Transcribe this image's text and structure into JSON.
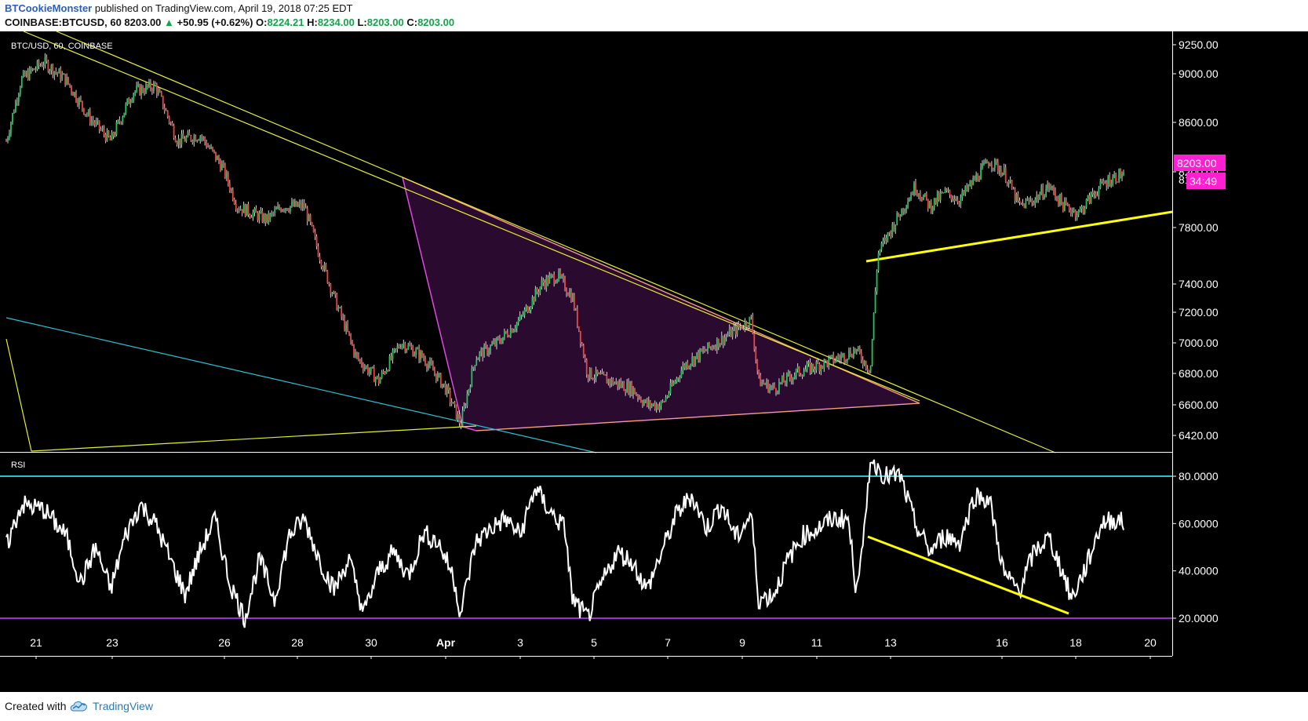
{
  "header": {
    "author": "BTCookieMonster",
    "published_text": "published on TradingView.com, April 19, 2018 07:25 EDT",
    "symbol": "COINBASE:BTCUSD, 60",
    "last": "8203.00",
    "change": "+50.95 (+0.62%)",
    "o_label": "O:",
    "o": "8224.21",
    "h_label": "H:",
    "h": "8234.00",
    "l_label": "L:",
    "l": "8203.00",
    "c_label": "C:",
    "c": "8203.00"
  },
  "price_pane": {
    "legend": "BTC/USD, 60, COINBASE",
    "price_tag": "8203.00",
    "countdown_tag": "34:49"
  },
  "rsi_pane": {
    "legend": "RSI"
  },
  "colors": {
    "background": "#000000",
    "up_candle": "#22c55e",
    "down_candle": "#ef4444",
    "trendline_yellow": "#e8ef2a",
    "wedge_fill": "#2a0a2e",
    "wedge_stroke": "#e048e0",
    "cyan_line": "#25c3d5",
    "rsi_line": "#ffffff",
    "rsi_upper": "#25c3d5",
    "rsi_lower": "#9b30d0",
    "tag_magenta": "#ff1fd2"
  },
  "footer": {
    "created_with": "Created with",
    "brand": "TradingView"
  },
  "chart_data": [
    {
      "type": "candlestick",
      "title": "BTC/USD, 60, COINBASE",
      "x_tick_labels": [
        "21",
        "23",
        "26",
        "28",
        "30",
        "Apr",
        "3",
        "5",
        "7",
        "9",
        "11",
        "13",
        "16",
        "18",
        "20"
      ],
      "y_tick_labels": [
        "9250.00",
        "9000.00",
        "8600.00",
        "8200.00",
        "7800.00",
        "7400.00",
        "7200.00",
        "7000.00",
        "6800.00",
        "6600.00",
        "6420.00"
      ],
      "ylim": [
        6300,
        9400
      ],
      "last_value": 8203.0,
      "close_path": [
        {
          "x": 0,
          "y": 8450
        },
        {
          "x": 2,
          "y": 8950
        },
        {
          "x": 5,
          "y": 9100
        },
        {
          "x": 8,
          "y": 8950
        },
        {
          "x": 11,
          "y": 8650
        },
        {
          "x": 14,
          "y": 8450
        },
        {
          "x": 17,
          "y": 8850
        },
        {
          "x": 20,
          "y": 8900
        },
        {
          "x": 23,
          "y": 8450
        },
        {
          "x": 26,
          "y": 8500
        },
        {
          "x": 29,
          "y": 8250
        },
        {
          "x": 31,
          "y": 7950
        },
        {
          "x": 33,
          "y": 7900
        },
        {
          "x": 35,
          "y": 7850
        },
        {
          "x": 37,
          "y": 7950
        },
        {
          "x": 40,
          "y": 7950
        },
        {
          "x": 42,
          "y": 7600
        },
        {
          "x": 44,
          "y": 7300
        },
        {
          "x": 47,
          "y": 6900
        },
        {
          "x": 50,
          "y": 6750
        },
        {
          "x": 53,
          "y": 7000
        },
        {
          "x": 56,
          "y": 6900
        },
        {
          "x": 59,
          "y": 6700
        },
        {
          "x": 61,
          "y": 6480
        },
        {
          "x": 63,
          "y": 6900
        },
        {
          "x": 66,
          "y": 7000
        },
        {
          "x": 69,
          "y": 7150
        },
        {
          "x": 72,
          "y": 7400
        },
        {
          "x": 74,
          "y": 7450
        },
        {
          "x": 76,
          "y": 7300
        },
        {
          "x": 78,
          "y": 6800
        },
        {
          "x": 81,
          "y": 6750
        },
        {
          "x": 84,
          "y": 6700
        },
        {
          "x": 86,
          "y": 6600
        },
        {
          "x": 88,
          "y": 6600
        },
        {
          "x": 91,
          "y": 6850
        },
        {
          "x": 94,
          "y": 6950
        },
        {
          "x": 97,
          "y": 7050
        },
        {
          "x": 100,
          "y": 7150
        },
        {
          "x": 101,
          "y": 6750
        },
        {
          "x": 103,
          "y": 6700
        },
        {
          "x": 106,
          "y": 6800
        },
        {
          "x": 109,
          "y": 6850
        },
        {
          "x": 112,
          "y": 6900
        },
        {
          "x": 114,
          "y": 6950
        },
        {
          "x": 116,
          "y": 6820
        },
        {
          "x": 117,
          "y": 7600
        },
        {
          "x": 118,
          "y": 7700
        },
        {
          "x": 120,
          "y": 7900
        },
        {
          "x": 122,
          "y": 8100
        },
        {
          "x": 124,
          "y": 7950
        },
        {
          "x": 126,
          "y": 8050
        },
        {
          "x": 128,
          "y": 8000
        },
        {
          "x": 130,
          "y": 8150
        },
        {
          "x": 132,
          "y": 8300
        },
        {
          "x": 134,
          "y": 8200
        },
        {
          "x": 136,
          "y": 7950
        },
        {
          "x": 138,
          "y": 8000
        },
        {
          "x": 140,
          "y": 8100
        },
        {
          "x": 142,
          "y": 7950
        },
        {
          "x": 144,
          "y": 7900
        },
        {
          "x": 146,
          "y": 8050
        },
        {
          "x": 148,
          "y": 8150
        },
        {
          "x": 150,
          "y": 8200
        }
      ]
    },
    {
      "type": "line",
      "title": "RSI",
      "y_tick_labels": [
        "80.0000",
        "60.0000",
        "40.0000",
        "20.0000"
      ],
      "ylim": [
        13,
        87
      ],
      "levels": [
        80,
        20
      ],
      "values_path": [
        {
          "x": 0,
          "y": 50
        },
        {
          "x": 2,
          "y": 68
        },
        {
          "x": 5,
          "y": 66
        },
        {
          "x": 8,
          "y": 55
        },
        {
          "x": 10,
          "y": 35
        },
        {
          "x": 12,
          "y": 50
        },
        {
          "x": 14,
          "y": 32
        },
        {
          "x": 16,
          "y": 55
        },
        {
          "x": 18,
          "y": 68
        },
        {
          "x": 20,
          "y": 60
        },
        {
          "x": 22,
          "y": 45
        },
        {
          "x": 24,
          "y": 30
        },
        {
          "x": 26,
          "y": 48
        },
        {
          "x": 28,
          "y": 62
        },
        {
          "x": 30,
          "y": 35
        },
        {
          "x": 32,
          "y": 20
        },
        {
          "x": 34,
          "y": 45
        },
        {
          "x": 36,
          "y": 28
        },
        {
          "x": 38,
          "y": 55
        },
        {
          "x": 40,
          "y": 62
        },
        {
          "x": 42,
          "y": 45
        },
        {
          "x": 44,
          "y": 32
        },
        {
          "x": 46,
          "y": 45
        },
        {
          "x": 48,
          "y": 22
        },
        {
          "x": 50,
          "y": 40
        },
        {
          "x": 52,
          "y": 48
        },
        {
          "x": 54,
          "y": 38
        },
        {
          "x": 56,
          "y": 56
        },
        {
          "x": 58,
          "y": 52
        },
        {
          "x": 60,
          "y": 38
        },
        {
          "x": 61,
          "y": 22
        },
        {
          "x": 63,
          "y": 52
        },
        {
          "x": 65,
          "y": 58
        },
        {
          "x": 67,
          "y": 62
        },
        {
          "x": 69,
          "y": 55
        },
        {
          "x": 71,
          "y": 75
        },
        {
          "x": 73,
          "y": 65
        },
        {
          "x": 75,
          "y": 58
        },
        {
          "x": 76,
          "y": 28
        },
        {
          "x": 78,
          "y": 20
        },
        {
          "x": 80,
          "y": 35
        },
        {
          "x": 82,
          "y": 48
        },
        {
          "x": 84,
          "y": 44
        },
        {
          "x": 86,
          "y": 32
        },
        {
          "x": 88,
          "y": 48
        },
        {
          "x": 90,
          "y": 64
        },
        {
          "x": 92,
          "y": 72
        },
        {
          "x": 94,
          "y": 58
        },
        {
          "x": 96,
          "y": 68
        },
        {
          "x": 98,
          "y": 54
        },
        {
          "x": 100,
          "y": 64
        },
        {
          "x": 101,
          "y": 28
        },
        {
          "x": 103,
          "y": 30
        },
        {
          "x": 105,
          "y": 45
        },
        {
          "x": 107,
          "y": 55
        },
        {
          "x": 109,
          "y": 58
        },
        {
          "x": 111,
          "y": 62
        },
        {
          "x": 113,
          "y": 62
        },
        {
          "x": 114,
          "y": 35
        },
        {
          "x": 115,
          "y": 48
        },
        {
          "x": 116,
          "y": 88
        },
        {
          "x": 118,
          "y": 80
        },
        {
          "x": 120,
          "y": 80
        },
        {
          "x": 122,
          "y": 60
        },
        {
          "x": 124,
          "y": 48
        },
        {
          "x": 126,
          "y": 55
        },
        {
          "x": 128,
          "y": 52
        },
        {
          "x": 130,
          "y": 72
        },
        {
          "x": 132,
          "y": 70
        },
        {
          "x": 134,
          "y": 38
        },
        {
          "x": 136,
          "y": 32
        },
        {
          "x": 138,
          "y": 48
        },
        {
          "x": 140,
          "y": 54
        },
        {
          "x": 142,
          "y": 38
        },
        {
          "x": 143,
          "y": 28
        },
        {
          "x": 145,
          "y": 42
        },
        {
          "x": 147,
          "y": 60
        },
        {
          "x": 149,
          "y": 62
        },
        {
          "x": 150,
          "y": 60
        }
      ]
    }
  ]
}
